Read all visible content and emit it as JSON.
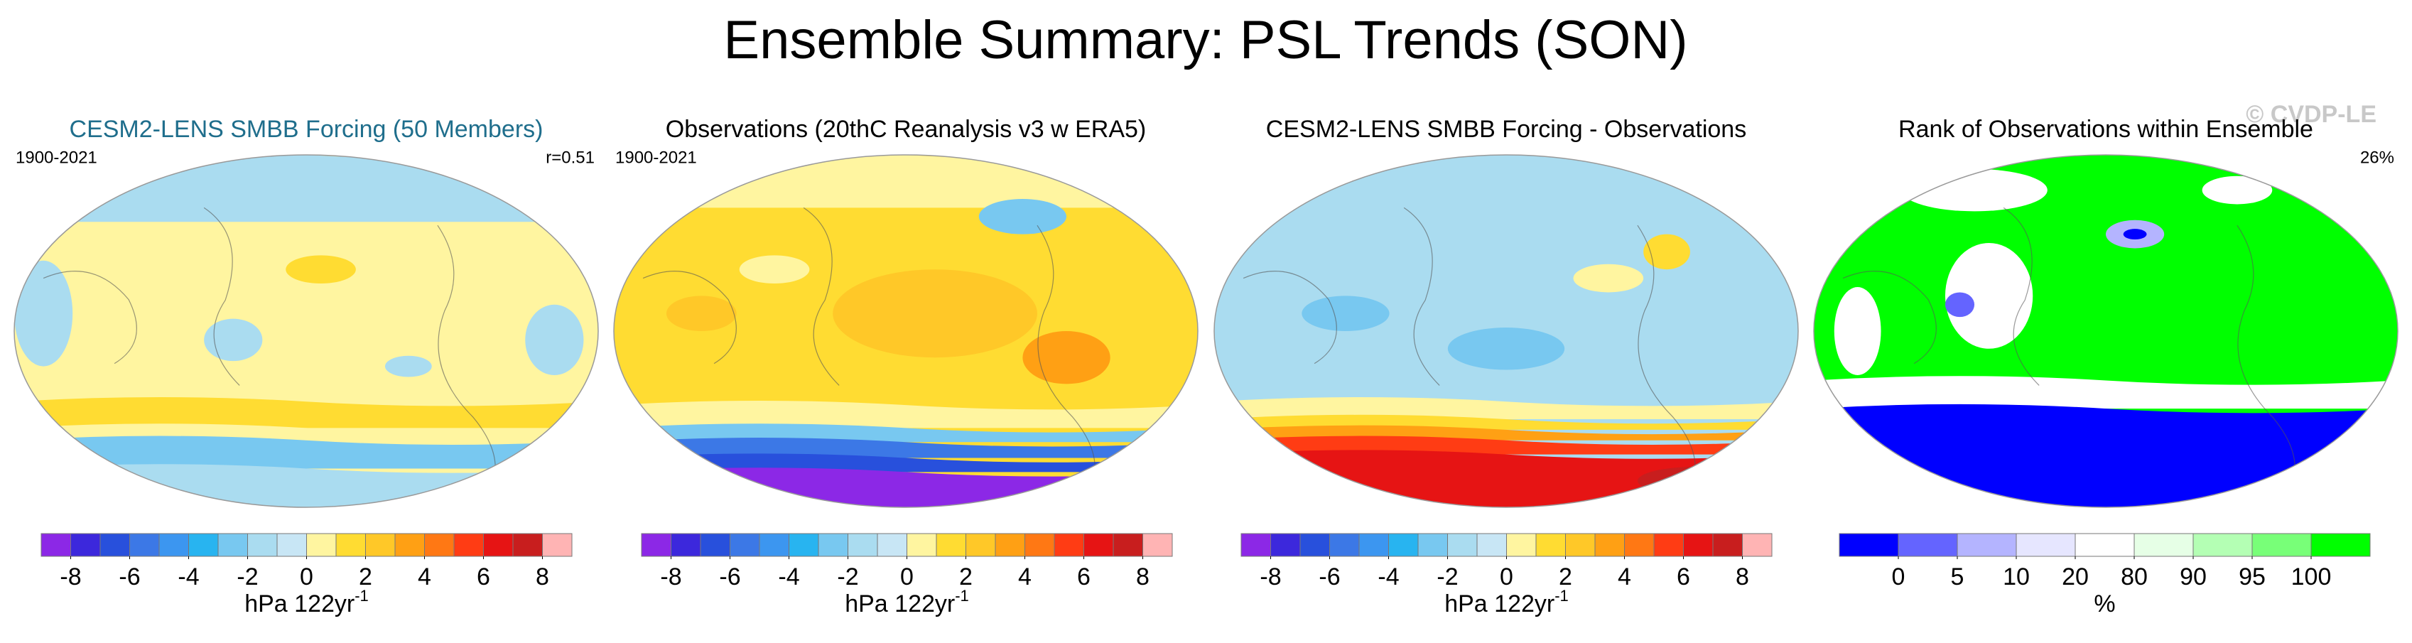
{
  "title": "Ensemble Summary: PSL Trends (SON)",
  "watermark": "© CVDP-LE",
  "panels": [
    {
      "title": "CESM2-LENS SMBB Forcing (50 Members)",
      "title_color": "#1f6e8c",
      "left_label": "1900-2021",
      "right_label": "r=0.51",
      "colorbar": {
        "colors": [
          "#8c28e6",
          "#3c28dc",
          "#2850dc",
          "#3c78e6",
          "#3c96f0",
          "#28b4f0",
          "#78c8f0",
          "#aadcf0",
          "#c8e6f5",
          "#fff5a0",
          "#ffdc32",
          "#ffc828",
          "#ffa014",
          "#ff7814",
          "#ff3c14",
          "#e61414",
          "#c81e1e",
          "#ffb4b4"
        ],
        "ticks": [
          -8,
          -6,
          -4,
          -2,
          0,
          2,
          4,
          6,
          8
        ],
        "units": "hPa 122yr",
        "units_superscript": "-1"
      }
    },
    {
      "title": "Observations (20thC Reanalysis v3 w ERA5)",
      "title_color": "#000000",
      "left_label": "1900-2021",
      "colorbar": {
        "colors": [
          "#8c28e6",
          "#3c28dc",
          "#2850dc",
          "#3c78e6",
          "#3c96f0",
          "#28b4f0",
          "#78c8f0",
          "#aadcf0",
          "#c8e6f5",
          "#fff5a0",
          "#ffdc32",
          "#ffc828",
          "#ffa014",
          "#ff7814",
          "#ff3c14",
          "#e61414",
          "#c81e1e",
          "#ffb4b4"
        ],
        "ticks": [
          -8,
          -6,
          -4,
          -2,
          0,
          2,
          4,
          6,
          8
        ],
        "units": "hPa 122yr",
        "units_superscript": "-1"
      }
    },
    {
      "title": "CESM2-LENS SMBB Forcing - Observations",
      "title_color": "#000000",
      "colorbar": {
        "colors": [
          "#8c28e6",
          "#3c28dc",
          "#2850dc",
          "#3c78e6",
          "#3c96f0",
          "#28b4f0",
          "#78c8f0",
          "#aadcf0",
          "#c8e6f5",
          "#fff5a0",
          "#ffdc32",
          "#ffc828",
          "#ffa014",
          "#ff7814",
          "#ff3c14",
          "#e61414",
          "#c81e1e",
          "#ffb4b4"
        ],
        "ticks": [
          -8,
          -6,
          -4,
          -2,
          0,
          2,
          4,
          6,
          8
        ],
        "units": "hPa 122yr",
        "units_superscript": "-1"
      }
    },
    {
      "title": "Rank of Observations within Ensemble",
      "title_color": "#000000",
      "right_label": "26%",
      "colorbar": {
        "colors": [
          "#0000ff",
          "#6464ff",
          "#b4b4ff",
          "#e6e6ff",
          "#ffffff",
          "#e6ffe6",
          "#b4ffb4",
          "#78ff78",
          "#00ff00"
        ],
        "ticks": [
          0,
          5,
          10,
          20,
          80,
          90,
          95,
          100
        ],
        "units": "%"
      }
    }
  ]
}
